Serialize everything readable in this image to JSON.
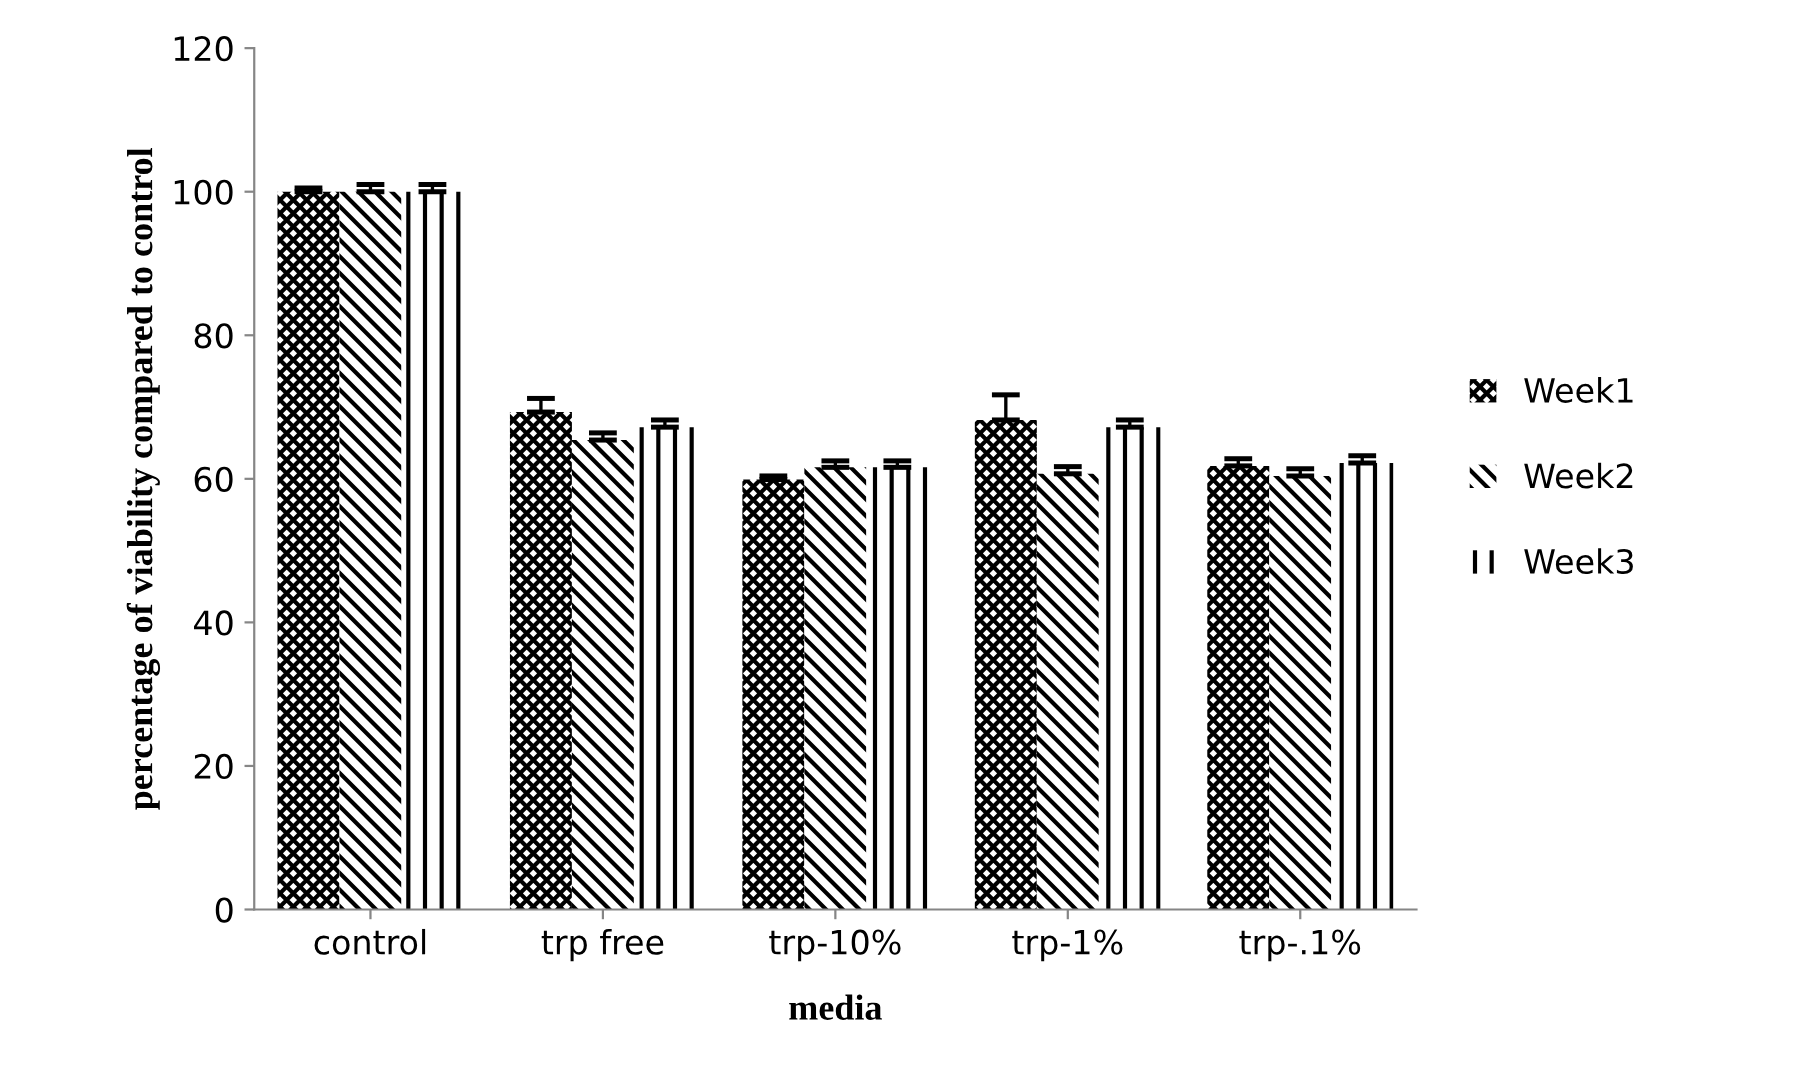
{
  "chart_data": {
    "type": "bar",
    "xlabel": "media",
    "ylabel": "percentage of viability compared to control",
    "categories": [
      "control",
      "trp free",
      "trp-10%",
      "trp-1%",
      "trp-.1%"
    ],
    "series": [
      {
        "name": "Week1",
        "color": "#000000",
        "values": [
          100,
          69.3,
          59.9,
          68.2,
          61.8
        ],
        "errors": [
          0.5,
          1.9,
          0.5,
          3.5,
          1.0
        ]
      },
      {
        "name": "Week2",
        "color": "#000000",
        "values": [
          100,
          65.4,
          61.6,
          60.7,
          60.4
        ],
        "errors": [
          1.0,
          1.0,
          0.9,
          1.0,
          1.0
        ]
      },
      {
        "name": "Week3",
        "color": "#000000",
        "values": [
          100,
          67.2,
          61.6,
          67.2,
          62.2
        ],
        "errors": [
          1.0,
          1.0,
          0.9,
          1.0,
          1.0
        ]
      }
    ],
    "ylim": [
      0,
      120
    ],
    "yticks": [
      0,
      20,
      40,
      60,
      80,
      100,
      120
    ],
    "grid": false,
    "legend": "right"
  }
}
